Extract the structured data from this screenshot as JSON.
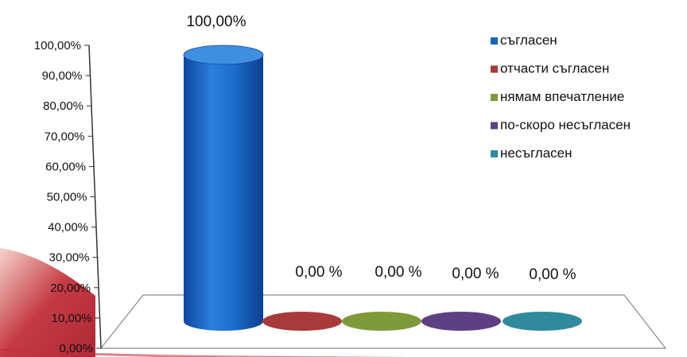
{
  "chart_data": {
    "type": "bar",
    "style": "3d-cylinder",
    "categories": [
      "съгласен",
      "отчасти съгласен",
      "нямам впечатление",
      "по-скоро несъгласен",
      "несъгласен"
    ],
    "values": [
      100,
      0,
      0,
      0,
      0
    ],
    "data_labels": [
      "100,00%",
      "0,00 %",
      "0,00 %",
      "0,00 %",
      "0,00 %"
    ],
    "colors": [
      "#1565c0",
      "#a83a3a",
      "#7e9a3a",
      "#5f3f84",
      "#2e8a9c"
    ],
    "ylim": [
      0,
      100
    ],
    "yticks": [
      0,
      10,
      20,
      30,
      40,
      50,
      60,
      70,
      80,
      90,
      100
    ],
    "ytick_labels": [
      "0,00%",
      "10,00%",
      "20,00%",
      "30,00%",
      "40,00%",
      "50,00%",
      "60,00%",
      "70,00%",
      "80,00%",
      "90,00%",
      "100,00%"
    ],
    "legend": {
      "position": "right",
      "entries": [
        "съгласен",
        "отчасти съгласен",
        "нямам впечатление",
        "по-скоро несъгласен",
        "несъгласен"
      ]
    },
    "grid": false
  }
}
